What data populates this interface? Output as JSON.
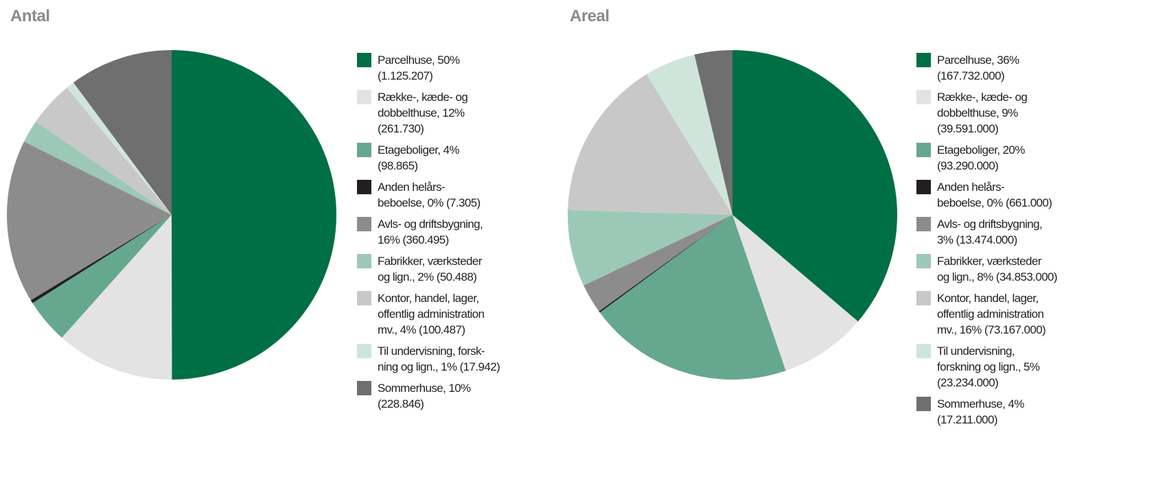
{
  "chart_data": [
    {
      "type": "pie",
      "title": "Antal",
      "categories": [
        "Parcelhuse, 50%\n(1.125.207)",
        "Række-, kæde- og\ndobbelthuse, 12%\n(261.730)",
        "Etageboliger, 4%\n(98.865)",
        "Anden helårs-\nbeboelse, 0% (7.305)",
        "Avls- og driftsbygning,\n16% (360.495)",
        "Fabrikker, værksteder\nog lign., 2% (50.488)",
        "Kontor, handel, lager,\noffentlig administration\nmv., 4% (100.487)",
        "Til undervisning, forsk-\nning og lign., 1% (17.942)",
        "Sommerhuse, 10%\n(228.846)"
      ],
      "values": [
        1125207,
        261730,
        98865,
        7305,
        360495,
        50488,
        100487,
        17942,
        228846
      ],
      "colors": [
        "#006f45",
        "#e3e3e3",
        "#66a88f",
        "#231f20",
        "#8c8c8c",
        "#9cc9b7",
        "#c8c8c8",
        "#cfe5dc",
        "#6f6f6f"
      ]
    },
    {
      "type": "pie",
      "title": "Areal",
      "categories": [
        "Parcelhuse, 36%\n(167.732.000)",
        "Række-, kæde- og\ndobbelthuse, 9%\n(39.591.000)",
        "Etageboliger, 20%\n(93.290.000)",
        "Anden helårs-\nbeboelse, 0% (661.000)",
        "Avls- og driftsbygning,\n3% (13.474.000)",
        "Fabrikker, værksteder\nog lign., 8% (34.853.000)",
        "Kontor, handel, lager,\noffentlig administration\nmv., 16% (73.167.000)",
        "Til undervisning,\nforskning og lign., 5%\n(23.234.000)",
        "Sommerhuse, 4%\n(17.211.000)"
      ],
      "values": [
        167732000,
        39591000,
        93290000,
        661000,
        13474000,
        34853000,
        73167000,
        23234000,
        17211000
      ],
      "colors": [
        "#006f45",
        "#e3e3e3",
        "#66a88f",
        "#231f20",
        "#8c8c8c",
        "#9cc9b7",
        "#c8c8c8",
        "#cfe5dc",
        "#6f6f6f"
      ]
    }
  ]
}
